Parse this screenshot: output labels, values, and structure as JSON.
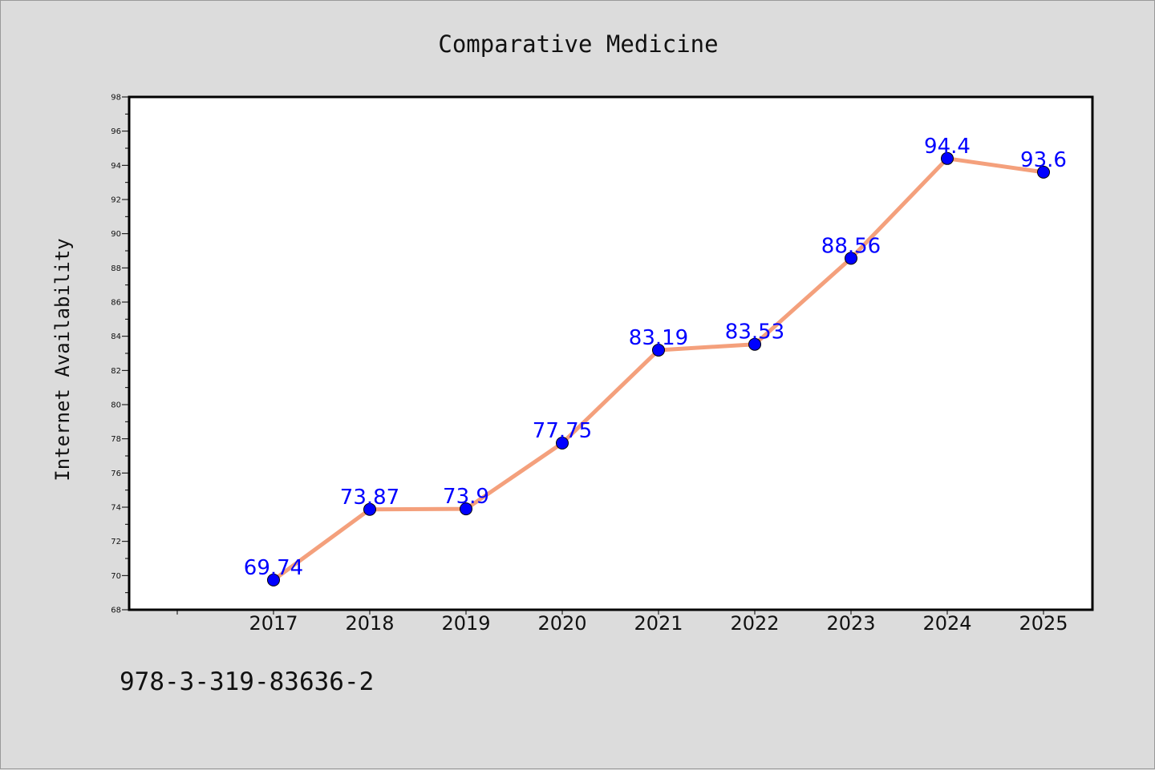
{
  "footer": {
    "code": "978-3-319-83636-2"
  },
  "colors": {
    "background": "#dcdcdc",
    "plot_background": "#ffffff",
    "line": "#f4a07c",
    "marker": "#0000ff",
    "data_label": "#0000ff"
  },
  "chart_data": {
    "type": "line",
    "title": "Comparative Medicine",
    "xlabel": "",
    "ylabel": "Internet Availability",
    "categories": [
      "2017",
      "2018",
      "2019",
      "2020",
      "2021",
      "2022",
      "2023",
      "2024",
      "2025"
    ],
    "series": [
      {
        "values": [
          69.74,
          73.87,
          73.9,
          77.75,
          83.19,
          83.53,
          88.56,
          94.4,
          93.6
        ],
        "labels": [
          "69.74",
          "73.87",
          "73.9",
          "77.75",
          "83.19",
          "83.53",
          "88.56",
          "94.4",
          "93.6"
        ]
      }
    ],
    "ylim": [
      68,
      98
    ],
    "yticks": [
      "68",
      "70",
      "72",
      "74",
      "76",
      "78",
      "80",
      "82",
      "84",
      "86",
      "88",
      "90",
      "92",
      "94",
      "96",
      "98"
    ],
    "grid": false,
    "legend": "none"
  }
}
